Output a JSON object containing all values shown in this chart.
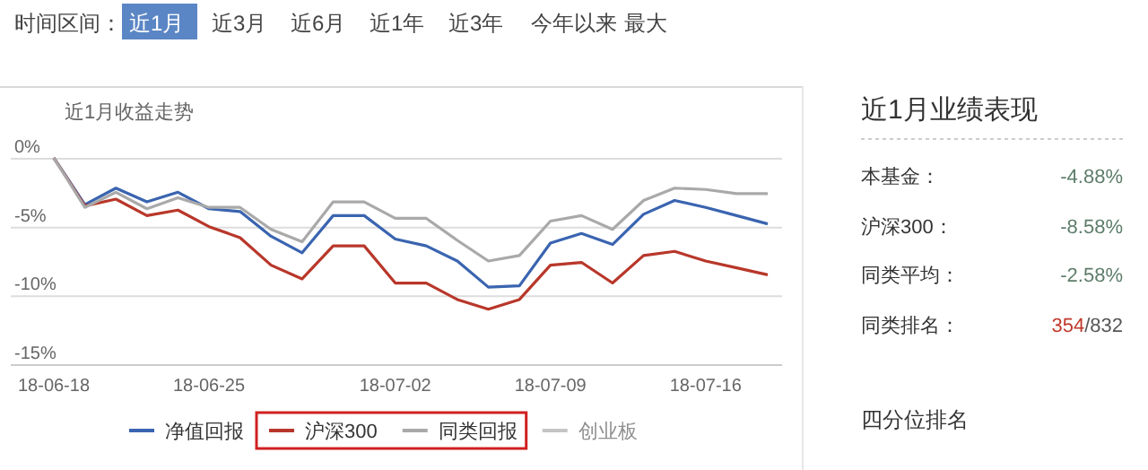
{
  "chart_data": [
    {
      "type": "line",
      "title": "近1月收益走势",
      "annotations": [
        "时间区间：",
        "近1月",
        "近3月",
        "近6月",
        "近1年",
        "近3年",
        "今年以来",
        "最大"
      ],
      "categories": [
        "18-06-18",
        null,
        null,
        null,
        null,
        "18-06-25",
        null,
        null,
        null,
        null,
        null,
        "18-07-02",
        null,
        null,
        null,
        null,
        "18-07-09",
        null,
        null,
        null,
        null,
        "18-07-16",
        null,
        null
      ],
      "series": [
        {
          "name": "净值回报",
          "color": "#3a64b0",
          "values": [
            0,
            -3.4,
            -2.2,
            -3.2,
            -2.5,
            -3.7,
            -3.9,
            -5.7,
            -6.9,
            -4.2,
            -4.2,
            -5.9,
            -6.4,
            -7.5,
            -9.4,
            -9.3,
            -6.2,
            -5.5,
            -6.3,
            -4.1,
            -3.1,
            -3.6,
            -4.2,
            -4.8
          ]
        },
        {
          "name": "沪深300",
          "color": "#b8372a",
          "values": [
            0,
            -3.5,
            -3.0,
            -4.2,
            -3.8,
            -5.0,
            -5.8,
            -7.8,
            -8.8,
            -6.4,
            -6.4,
            -9.1,
            -9.1,
            -10.3,
            -11.0,
            -10.3,
            -7.8,
            -7.6,
            -9.1,
            -7.1,
            -6.8,
            -7.5,
            -8.0,
            -8.5
          ]
        },
        {
          "name": "同类回报",
          "color": "#a9a9a9",
          "values": [
            0,
            -3.6,
            -2.5,
            -3.7,
            -2.9,
            -3.6,
            -3.6,
            -5.2,
            -6.1,
            -3.2,
            -3.2,
            -4.4,
            -4.4,
            -6.0,
            -7.5,
            -7.1,
            -4.6,
            -4.2,
            -5.2,
            -3.1,
            -2.2,
            -2.3,
            -2.6,
            -2.6
          ]
        },
        {
          "name": "创业板",
          "color": "#c4c4c4",
          "values": [
            null,
            null,
            null,
            null,
            null,
            null,
            null,
            null,
            null,
            null,
            null,
            null,
            null,
            null,
            null,
            null,
            null,
            null,
            null,
            null,
            null,
            null,
            null,
            null
          ]
        }
      ],
      "ylim": [
        -15,
        0
      ],
      "yticks": [
        {
          "value": 0,
          "label": "0%"
        },
        {
          "value": -5,
          "label": "-5%"
        },
        {
          "value": -10,
          "label": "-10%"
        },
        {
          "value": -15,
          "label": "-15%"
        }
      ],
      "grid": "y",
      "legend": "bottom",
      "marker": "none",
      "line_style": "solid"
    },
    {
      "type": "other",
      "title": "近1月业绩表现",
      "annotations": [
        "本基金：",
        "-4.88%",
        "沪深300：",
        "-8.58%",
        "同类平均：",
        "-2.58%",
        "同类排名：",
        "354",
        "/832",
        "四分位排名"
      ]
    }
  ]
}
